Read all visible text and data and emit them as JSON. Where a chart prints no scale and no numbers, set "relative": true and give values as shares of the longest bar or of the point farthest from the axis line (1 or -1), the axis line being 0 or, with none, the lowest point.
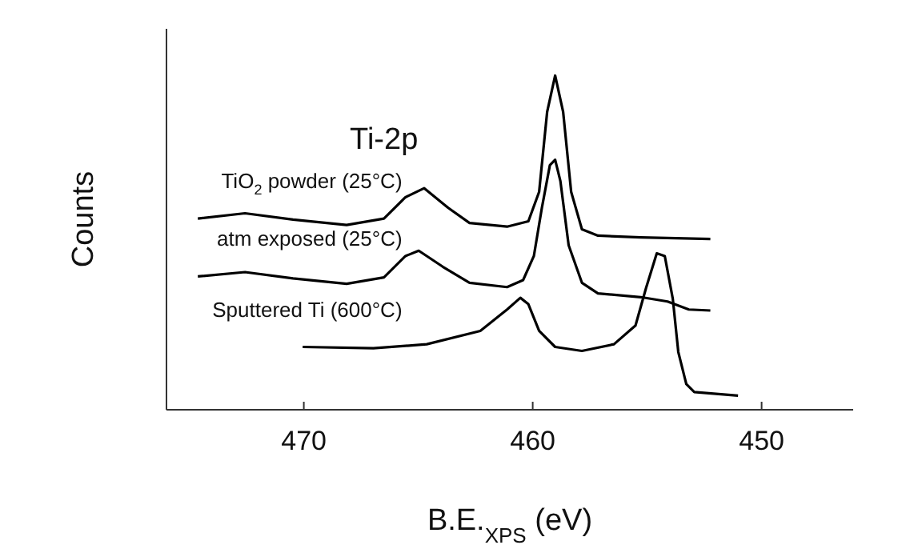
{
  "chart_data": {
    "type": "line",
    "title": "Ti-2p",
    "xlabel": "B.E.$_{XPS}$ (eV)",
    "ylabel": "Counts",
    "relative": true,
    "xlim": [
      476,
      446
    ],
    "xticks": [
      470,
      460,
      450
    ],
    "marker": "none",
    "line_style": "solid",
    "series": [
      {
        "name": "TiO$_{2}$ powder (25°C)",
        "color": "#000000",
        "x": [
          474.63,
          472.57,
          470.47,
          468.13,
          466.5,
          465.56,
          464.74,
          463.69,
          462.76,
          461.12,
          460.19,
          459.72,
          459.37,
          459.02,
          458.67,
          458.32,
          457.85,
          457.15,
          455.28,
          452.24
        ],
        "values": [
          0.572,
          0.588,
          0.569,
          0.553,
          0.572,
          0.636,
          0.663,
          0.604,
          0.559,
          0.548,
          0.564,
          0.652,
          0.891,
          1,
          0.891,
          0.652,
          0.54,
          0.521,
          0.516,
          0.511
        ]
      },
      {
        "name": "atm exposed (25°C)",
        "color": "#000000",
        "x": [
          474.63,
          472.57,
          470.47,
          468.13,
          466.5,
          465.56,
          464.98,
          463.93,
          462.76,
          461.12,
          460.42,
          459.95,
          459.6,
          459.25,
          459.02,
          458.79,
          458.43,
          457.85,
          457.15,
          455.28,
          454.11,
          453.18,
          452.24
        ],
        "values": [
          0.399,
          0.412,
          0.393,
          0.377,
          0.396,
          0.46,
          0.476,
          0.428,
          0.38,
          0.367,
          0.388,
          0.46,
          0.604,
          0.732,
          0.748,
          0.684,
          0.492,
          0.38,
          0.348,
          0.337,
          0.324,
          0.3,
          0.297
        ]
      },
      {
        "name": "Sputtered Ti (600°C)",
        "color": "#000000",
        "x": [
          470.05,
          466.96,
          464.63,
          462.29,
          461.12,
          460.54,
          460.19,
          459.72,
          459.02,
          457.85,
          456.45,
          455.51,
          455.05,
          454.58,
          454.23,
          453.88,
          453.64,
          453.29,
          452.94,
          451.03
        ],
        "values": [
          0.188,
          0.184,
          0.196,
          0.236,
          0.3,
          0.335,
          0.316,
          0.236,
          0.188,
          0.176,
          0.196,
          0.252,
          0.364,
          0.468,
          0.46,
          0.332,
          0.173,
          0.077,
          0.053,
          0.042
        ]
      }
    ]
  }
}
